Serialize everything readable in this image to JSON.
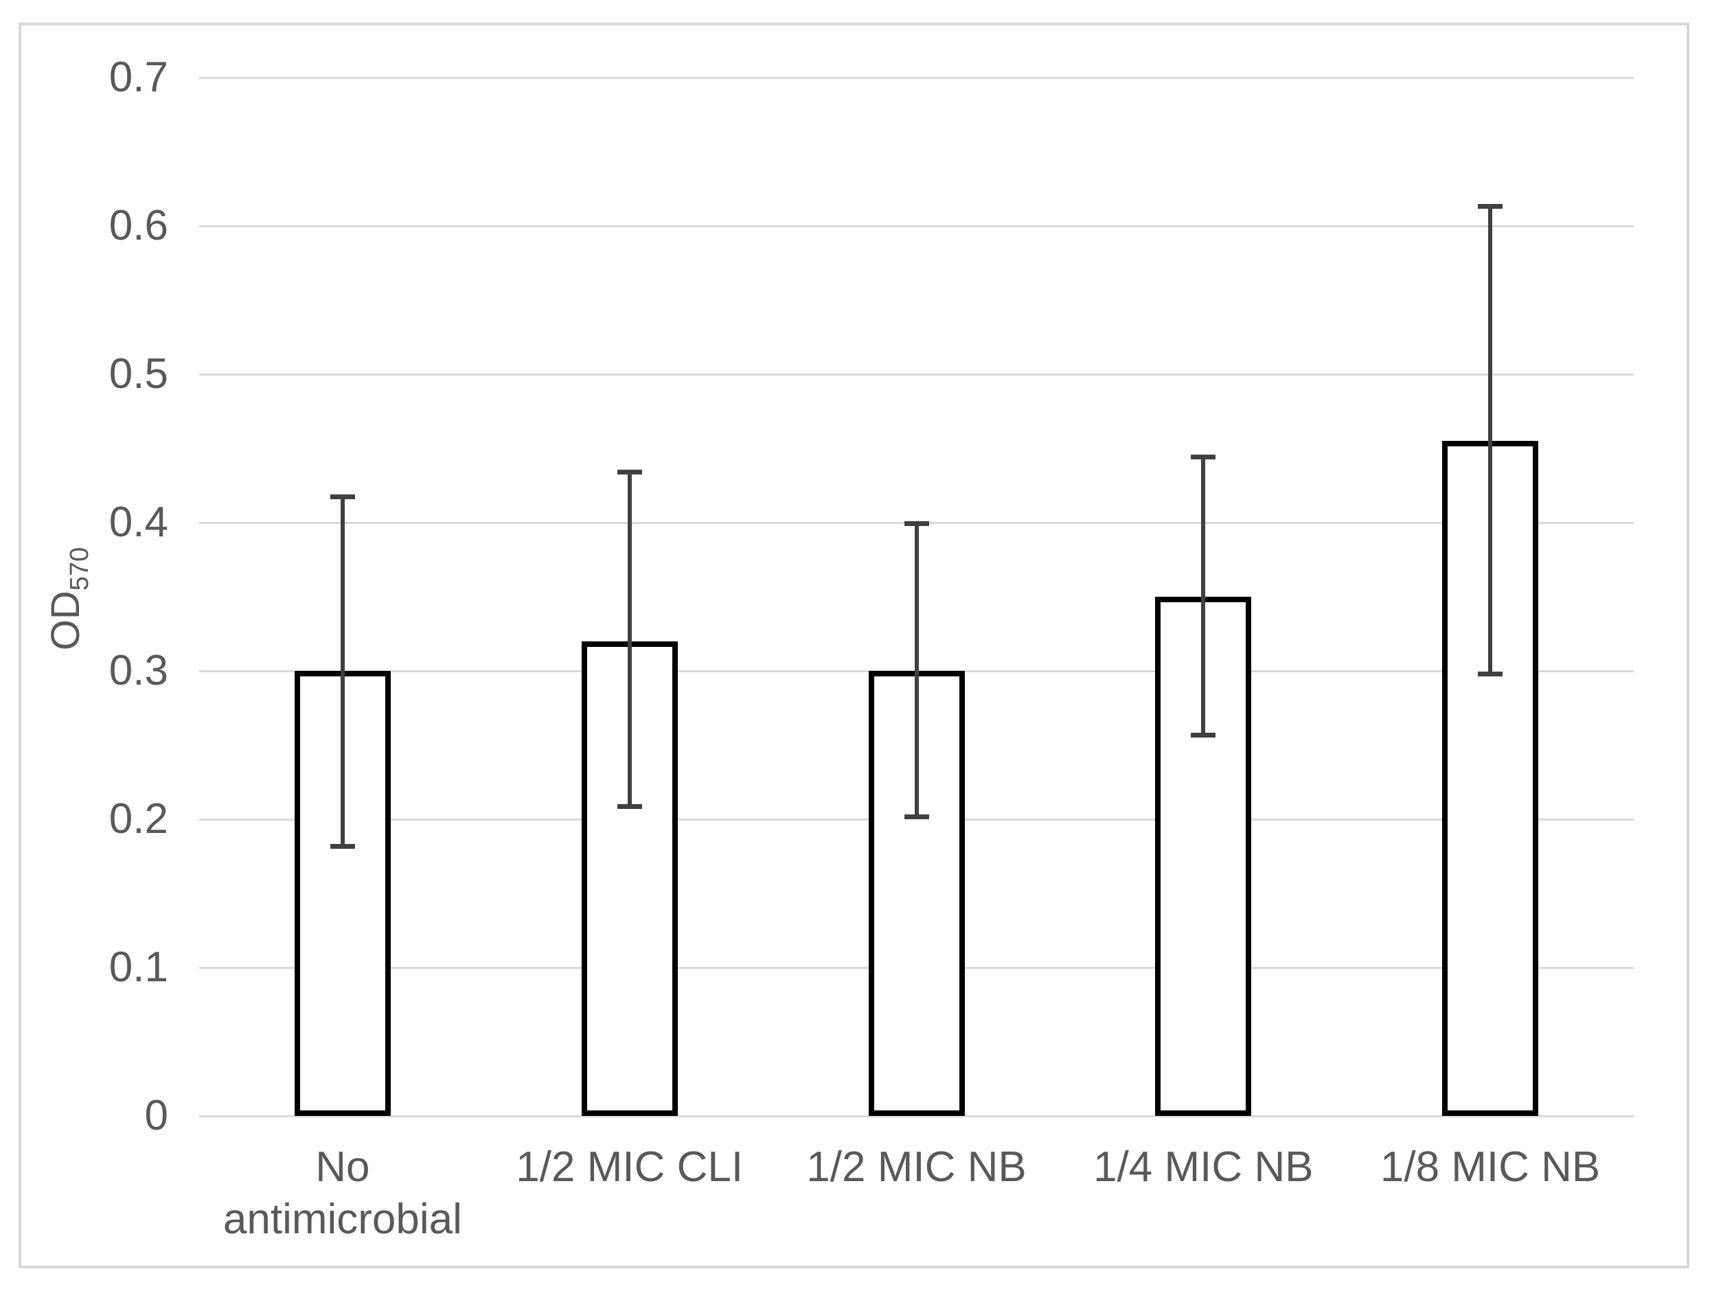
{
  "chart_data": {
    "type": "bar",
    "title": "",
    "categories": [
      "No antimicrobial",
      "1/2 MIC CLI",
      "1/2 MIC NB",
      "1/4 MIC NB",
      "1/8 MIC NB"
    ],
    "values": [
      0.3,
      0.32,
      0.3,
      0.35,
      0.455
    ],
    "error_upper": [
      0.417,
      0.434,
      0.399,
      0.444,
      0.613
    ],
    "error_lower": [
      0.182,
      0.209,
      0.202,
      0.257,
      0.298
    ],
    "xlabel": "",
    "ylabel": {
      "text": "OD",
      "subscript": "570"
    },
    "ylim": [
      0,
      0.7
    ],
    "ytick_interval": 0.1,
    "yticks": [
      "0",
      "0.1",
      "0.2",
      "0.3",
      "0.4",
      "0.5",
      "0.6",
      "0.7"
    ],
    "grid": true,
    "legend": false,
    "colors": {
      "bar_fill": "#ffffff",
      "bar_border": "#000000",
      "error_bar": "#404040",
      "gridline": "#d9d9d9",
      "axis_line": "#d9d9d9",
      "text": "#595959",
      "frame_border": "#d9d9d9"
    }
  }
}
